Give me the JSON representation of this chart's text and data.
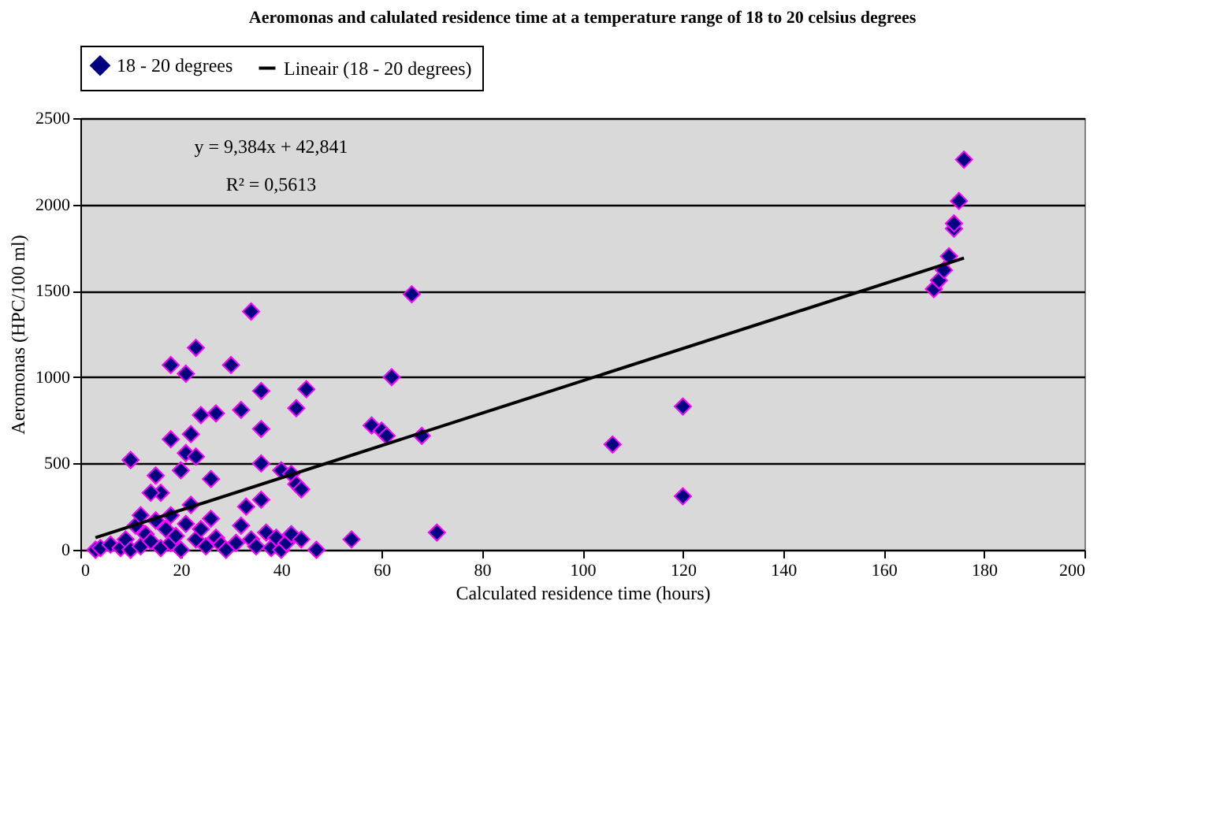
{
  "chart_data": {
    "type": "scatter",
    "title": "Aeromonas and calulated residence time at a temperature range of 18 to 20 celsius degrees",
    "xlabel": "Calculated residence time (hours)",
    "ylabel": "Aeromonas (HPC/100 ml)",
    "xlim": [
      0,
      200
    ],
    "xticks": [
      0,
      20,
      40,
      60,
      80,
      100,
      120,
      140,
      160,
      180,
      200
    ],
    "ylim": [
      0,
      2500
    ],
    "yticks": [
      0,
      500,
      1000,
      1500,
      2000,
      2500
    ],
    "grid": "y",
    "legend": "top",
    "annotations": [
      "y = 9,384x + 42,841",
      "R² = 0,5613"
    ],
    "series": [
      {
        "name": "18 - 20 degrees",
        "marker": "diamond",
        "color": "#000080",
        "x": [
          18,
          21,
          23,
          30,
          34,
          66,
          62,
          36,
          45,
          43,
          32,
          27,
          24,
          22,
          18,
          26,
          10,
          15,
          16,
          20,
          21,
          23,
          36,
          36,
          40,
          42,
          43,
          44,
          58,
          60,
          61,
          68,
          71,
          54,
          47,
          106,
          120,
          120,
          170,
          171,
          172,
          173,
          174,
          174,
          175,
          176,
          3,
          4,
          6,
          8,
          9,
          10,
          11,
          12,
          13,
          14,
          15,
          16,
          17,
          18,
          18,
          19,
          20,
          21,
          22,
          23,
          24,
          25,
          26,
          27,
          28,
          29,
          31,
          32,
          33,
          34,
          35,
          36,
          37,
          38,
          39,
          40,
          41,
          42,
          44,
          12,
          14
        ],
        "values": [
          1070,
          1020,
          1170,
          1070,
          1380,
          1480,
          1000,
          920,
          930,
          820,
          810,
          790,
          780,
          670,
          640,
          410,
          520,
          430,
          330,
          460,
          560,
          540,
          700,
          500,
          460,
          440,
          380,
          350,
          720,
          690,
          660,
          660,
          100,
          60,
          0,
          610,
          830,
          310,
          1510,
          1560,
          1620,
          1700,
          1860,
          1890,
          2020,
          2260,
          0,
          10,
          30,
          10,
          60,
          0,
          140,
          20,
          90,
          50,
          170,
          10,
          120,
          40,
          200,
          80,
          0,
          150,
          260,
          60,
          120,
          20,
          180,
          70,
          30,
          0,
          40,
          140,
          250,
          60,
          20,
          290,
          100,
          10,
          70,
          0,
          40,
          90,
          60,
          200,
          330
        ]
      },
      {
        "name": "Lineair (18 - 20 degrees)",
        "type": "line",
        "color": "#000000",
        "line_style": "solid",
        "x": [
          3,
          176
        ],
        "values": [
          70,
          1690
        ]
      }
    ]
  }
}
